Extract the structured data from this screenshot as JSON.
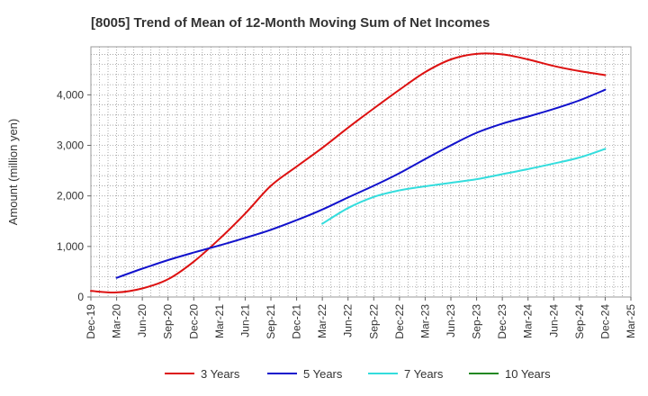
{
  "chart_data": {
    "type": "line",
    "title": "[8005]  Trend of Mean of 12-Month Moving Sum of Net Incomes",
    "ylabel": "Amount (million yen)",
    "xlabel": "",
    "x_ticks": [
      "Dec-19",
      "Mar-20",
      "Jun-20",
      "Sep-20",
      "Dec-20",
      "Mar-21",
      "Jun-21",
      "Sep-21",
      "Dec-21",
      "Mar-22",
      "Jun-22",
      "Sep-22",
      "Dec-22",
      "Mar-23",
      "Jun-23",
      "Sep-23",
      "Dec-23",
      "Mar-24",
      "Jun-24",
      "Sep-24",
      "Dec-24",
      "Mar-25"
    ],
    "y_ticks": [
      {
        "value": 0,
        "label": "0"
      },
      {
        "value": 1000,
        "label": "1,000"
      },
      {
        "value": 2000,
        "label": "2,000"
      },
      {
        "value": 3000,
        "label": "3,000"
      },
      {
        "value": 4000,
        "label": "4,000"
      }
    ],
    "ylim": [
      0,
      4950
    ],
    "grid": true,
    "legend_position": "bottom",
    "series": [
      {
        "name": "3 Years",
        "color": "#dd1111",
        "points": [
          [
            "Dec-19",
            120
          ],
          [
            "Mar-20",
            90
          ],
          [
            "Jun-20",
            170
          ],
          [
            "Sep-20",
            350
          ],
          [
            "Dec-20",
            700
          ],
          [
            "Mar-21",
            1150
          ],
          [
            "Jun-21",
            1650
          ],
          [
            "Sep-21",
            2200
          ],
          [
            "Dec-21",
            2580
          ],
          [
            "Mar-22",
            2950
          ],
          [
            "Jun-22",
            3350
          ],
          [
            "Sep-22",
            3730
          ],
          [
            "Dec-22",
            4100
          ],
          [
            "Mar-23",
            4450
          ],
          [
            "Jun-23",
            4700
          ],
          [
            "Sep-23",
            4810
          ],
          [
            "Dec-23",
            4800
          ],
          [
            "Mar-24",
            4700
          ],
          [
            "Jun-24",
            4570
          ],
          [
            "Sep-24",
            4470
          ],
          [
            "Dec-24",
            4390
          ]
        ]
      },
      {
        "name": "5 Years",
        "color": "#1111cc",
        "points": [
          [
            "Mar-20",
            380
          ],
          [
            "Jun-20",
            560
          ],
          [
            "Sep-20",
            730
          ],
          [
            "Dec-20",
            880
          ],
          [
            "Mar-21",
            1020
          ],
          [
            "Jun-21",
            1170
          ],
          [
            "Sep-21",
            1330
          ],
          [
            "Dec-21",
            1520
          ],
          [
            "Mar-22",
            1730
          ],
          [
            "Jun-22",
            1970
          ],
          [
            "Sep-22",
            2200
          ],
          [
            "Dec-22",
            2450
          ],
          [
            "Mar-23",
            2730
          ],
          [
            "Jun-23",
            3000
          ],
          [
            "Sep-23",
            3250
          ],
          [
            "Dec-23",
            3430
          ],
          [
            "Mar-24",
            3570
          ],
          [
            "Jun-24",
            3720
          ],
          [
            "Sep-24",
            3890
          ],
          [
            "Dec-24",
            4100
          ]
        ]
      },
      {
        "name": "7 Years",
        "color": "#33dddd",
        "points": [
          [
            "Mar-22",
            1450
          ],
          [
            "Jun-22",
            1760
          ],
          [
            "Sep-22",
            1980
          ],
          [
            "Dec-22",
            2110
          ],
          [
            "Mar-23",
            2190
          ],
          [
            "Jun-23",
            2260
          ],
          [
            "Sep-23",
            2330
          ],
          [
            "Dec-23",
            2430
          ],
          [
            "Mar-24",
            2530
          ],
          [
            "Jun-24",
            2640
          ],
          [
            "Sep-24",
            2760
          ],
          [
            "Dec-24",
            2930
          ]
        ]
      },
      {
        "name": "10 Years",
        "color": "#228822",
        "points": []
      }
    ]
  }
}
